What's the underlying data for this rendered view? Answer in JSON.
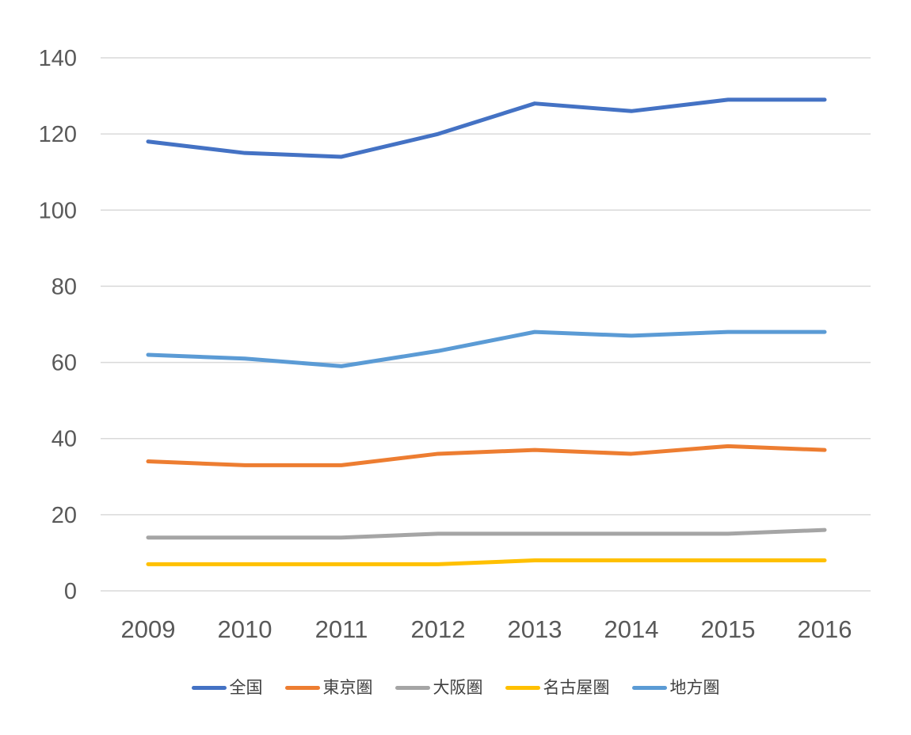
{
  "colors": {
    "background": "#ffffff",
    "gridline": "#D9D9D9",
    "axis_text": "#595959",
    "legend_text": "#404040"
  },
  "chart_data": {
    "type": "line",
    "title": "",
    "xlabel": "",
    "ylabel": "",
    "x": [
      "2009",
      "2010",
      "2011",
      "2012",
      "2013",
      "2014",
      "2015",
      "2016"
    ],
    "yticks": [
      "0",
      "20",
      "40",
      "60",
      "80",
      "100",
      "120",
      "140"
    ],
    "ytick_values": [
      0,
      20,
      40,
      60,
      80,
      100,
      120,
      140
    ],
    "ylim": [
      0,
      140
    ],
    "grid": true,
    "legend_position": "bottom",
    "line_width": 5,
    "series": [
      {
        "name": "全国",
        "color": "#4472C4",
        "values": [
          118,
          115,
          114,
          120,
          128,
          126,
          129,
          129
        ]
      },
      {
        "name": "東京圏",
        "color": "#ED7D31",
        "values": [
          34,
          33,
          33,
          36,
          37,
          36,
          38,
          37
        ]
      },
      {
        "name": "大阪圏",
        "color": "#A5A5A5",
        "values": [
          14,
          14,
          14,
          15,
          15,
          15,
          15,
          16
        ]
      },
      {
        "name": "名古屋圏",
        "color": "#FFC000",
        "values": [
          7,
          7,
          7,
          7,
          8,
          8,
          8,
          8
        ]
      },
      {
        "name": "地方圏",
        "color": "#5B9BD5",
        "values": [
          62,
          61,
          59,
          63,
          68,
          67,
          68,
          68
        ]
      }
    ]
  }
}
